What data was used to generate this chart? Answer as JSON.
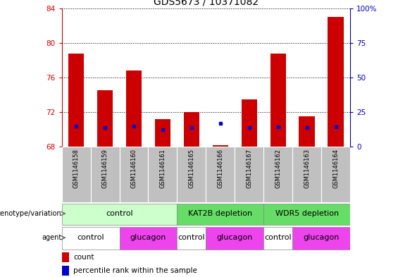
{
  "title": "GDS5673 / 10371082",
  "samples": [
    "GSM1146158",
    "GSM1146159",
    "GSM1146160",
    "GSM1146161",
    "GSM1146165",
    "GSM1146166",
    "GSM1146167",
    "GSM1146162",
    "GSM1146163",
    "GSM1146164"
  ],
  "red_values": [
    78.8,
    74.5,
    76.8,
    71.2,
    72.0,
    68.2,
    73.5,
    78.8,
    71.5,
    83.0
  ],
  "blue_values": [
    70.4,
    70.2,
    70.4,
    70.0,
    70.2,
    70.7,
    70.2,
    70.3,
    70.2,
    70.3
  ],
  "ylim_left": [
    68,
    84
  ],
  "yticks_left": [
    68,
    72,
    76,
    80,
    84
  ],
  "ylim_right": [
    0,
    100
  ],
  "yticks_right": [
    0,
    25,
    50,
    75,
    100
  ],
  "ytick_labels_right": [
    "0",
    "25",
    "50",
    "75",
    "100%"
  ],
  "bar_color": "#cc0000",
  "marker_color": "#0000cc",
  "background_plot": "#ffffff",
  "genotype_groups": [
    {
      "label": "control",
      "start": 0,
      "end": 4,
      "color": "#ccffcc"
    },
    {
      "label": "KAT2B depletion",
      "start": 4,
      "end": 7,
      "color": "#66dd66"
    },
    {
      "label": "WDR5 depletion",
      "start": 7,
      "end": 10,
      "color": "#66dd66"
    }
  ],
  "agent_groups": [
    {
      "label": "control",
      "start": 0,
      "end": 2,
      "color": "#ffffff"
    },
    {
      "label": "glucagon",
      "start": 2,
      "end": 4,
      "color": "#ee44ee"
    },
    {
      "label": "control",
      "start": 4,
      "end": 5,
      "color": "#ffffff"
    },
    {
      "label": "glucagon",
      "start": 5,
      "end": 7,
      "color": "#ee44ee"
    },
    {
      "label": "control",
      "start": 7,
      "end": 8,
      "color": "#ffffff"
    },
    {
      "label": "glucagon",
      "start": 8,
      "end": 10,
      "color": "#ee44ee"
    }
  ],
  "legend_count_color": "#cc0000",
  "legend_percentile_color": "#0000cc",
  "left_axis_color": "#cc0000",
  "right_axis_color": "#0000bb",
  "title_fontsize": 10,
  "tick_fontsize": 7.5,
  "label_fontsize": 8,
  "bar_width": 0.55,
  "sample_box_color": "#c0c0c0",
  "sample_box_edge": "#ffffff"
}
